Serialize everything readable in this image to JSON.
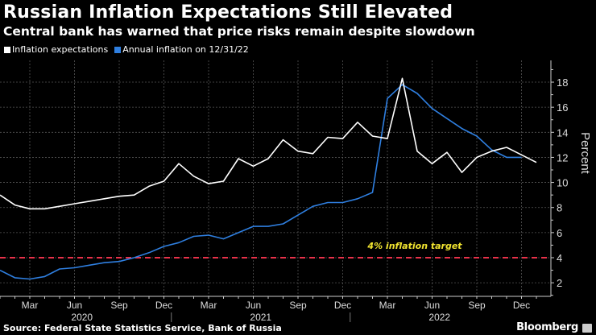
{
  "header": {
    "title": "Russian Inflation Expectations Still Elevated",
    "subtitle": "Central bank has warned that price risks remain despite slowdown"
  },
  "legend": [
    {
      "label": "Inflation expectations",
      "color": "#ffffff"
    },
    {
      "label": "Annual inflation on 12/31/22",
      "color": "#2f7fe0"
    }
  ],
  "footer": {
    "source": "Source: Federal State Statistics Service, Bank of Russia",
    "brand": "Bloomberg"
  },
  "chart_data": {
    "type": "line",
    "title": "Russian Inflation Expectations Still Elevated",
    "subtitle": "Central bank has warned that price risks remain despite slowdown",
    "xlabel": "",
    "ylabel": "Percent",
    "ylim": [
      1,
      19.5
    ],
    "yticks": [
      2,
      4,
      6,
      8,
      10,
      12,
      14,
      16,
      18
    ],
    "grid": true,
    "legend_position": "top-left",
    "x": [
      "2020-01",
      "2020-02",
      "2020-03",
      "2020-04",
      "2020-05",
      "2020-06",
      "2020-07",
      "2020-08",
      "2020-09",
      "2020-10",
      "2020-11",
      "2020-12",
      "2021-01",
      "2021-02",
      "2021-03",
      "2021-04",
      "2021-05",
      "2021-06",
      "2021-07",
      "2021-08",
      "2021-09",
      "2021-10",
      "2021-11",
      "2021-12",
      "2022-01",
      "2022-02",
      "2022-03",
      "2022-04",
      "2022-05",
      "2022-06",
      "2022-07",
      "2022-08",
      "2022-09",
      "2022-10",
      "2022-11",
      "2022-12",
      "2023-01"
    ],
    "xtick_labels": [
      {
        "month": "Mar",
        "year": "2020",
        "index": 2
      },
      {
        "month": "Jun",
        "year": "",
        "index": 5
      },
      {
        "month": "Sep",
        "year": "",
        "index": 8
      },
      {
        "month": "Dec",
        "year": "",
        "index": 11
      },
      {
        "month": "Mar",
        "year": "2021",
        "index": 14
      },
      {
        "month": "Jun",
        "year": "",
        "index": 17
      },
      {
        "month": "Sep",
        "year": "",
        "index": 20
      },
      {
        "month": "Dec",
        "year": "",
        "index": 23
      },
      {
        "month": "Mar",
        "year": "2022",
        "index": 26
      },
      {
        "month": "Jun",
        "year": "",
        "index": 29
      },
      {
        "month": "Sep",
        "year": "",
        "index": 32
      },
      {
        "month": "Dec",
        "year": "",
        "index": 35
      }
    ],
    "year_labels": [
      {
        "label": "2020",
        "center_index": 5.5
      },
      {
        "label": "2021",
        "center_index": 17.5
      },
      {
        "label": "2022",
        "center_index": 29.5
      }
    ],
    "year_dividers": [
      11.5,
      23.5
    ],
    "series": [
      {
        "name": "Inflation expectations",
        "color": "#ffffff",
        "values": [
          9.0,
          8.2,
          7.9,
          7.9,
          8.1,
          8.3,
          8.5,
          8.7,
          8.9,
          9.0,
          9.7,
          10.1,
          11.5,
          10.5,
          9.9,
          10.1,
          11.9,
          11.3,
          11.9,
          13.4,
          12.5,
          12.3,
          13.6,
          13.5,
          14.8,
          13.7,
          13.5,
          18.3,
          12.5,
          11.5,
          12.4,
          10.8,
          12.0,
          12.5,
          12.8,
          12.2,
          11.6
        ]
      },
      {
        "name": "Annual inflation on 12/31/22",
        "color": "#2f7fe0",
        "values": [
          3.0,
          2.4,
          2.3,
          2.5,
          3.1,
          3.2,
          3.4,
          3.6,
          3.7,
          4.0,
          4.4,
          4.9,
          5.2,
          5.7,
          5.8,
          5.5,
          6.0,
          6.5,
          6.5,
          6.7,
          7.4,
          8.1,
          8.4,
          8.4,
          8.7,
          9.2,
          16.7,
          17.8,
          17.1,
          15.9,
          15.1,
          14.3,
          13.7,
          12.6,
          12.0,
          12.0,
          null
        ]
      }
    ],
    "annotations": [
      {
        "text": "4% inflation target",
        "y": 4,
        "color": "#f2e530",
        "line_color": "#e8324a",
        "line_style": "dashed"
      }
    ]
  }
}
